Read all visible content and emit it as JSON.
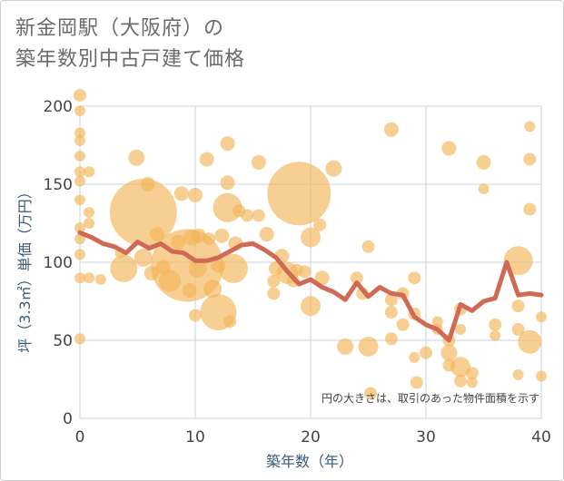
{
  "chart_data": {
    "type": "scatter",
    "title_line1": "新金岡駅（大阪府）の",
    "title_line2": "築年数別中古戸建て価格",
    "xlabel": "築年数（年）",
    "ylabel": "坪（3.3㎡）単価（万円）",
    "note": "円の大きさは、取引のあった物件面積を示す",
    "xlim": [
      0,
      40
    ],
    "ylim": [
      0,
      200
    ],
    "xticks": [
      "0",
      "10",
      "20",
      "30",
      "40"
    ],
    "yticks": [
      "0",
      "50",
      "100",
      "150",
      "200"
    ],
    "colors": {
      "bubble": "#f3b557",
      "line": "#d06a55",
      "grid": "#c8d3de"
    },
    "bubbles": [
      {
        "x": 0,
        "y": 207,
        "s": 7
      },
      {
        "x": 0,
        "y": 197,
        "s": 6
      },
      {
        "x": 0,
        "y": 183,
        "s": 6
      },
      {
        "x": 0,
        "y": 178,
        "s": 6
      },
      {
        "x": 0,
        "y": 168,
        "s": 6
      },
      {
        "x": 0,
        "y": 158,
        "s": 6
      },
      {
        "x": 0,
        "y": 152,
        "s": 6
      },
      {
        "x": 0,
        "y": 140,
        "s": 6
      },
      {
        "x": 0,
        "y": 122,
        "s": 6
      },
      {
        "x": 0,
        "y": 115,
        "s": 6
      },
      {
        "x": 0,
        "y": 105,
        "s": 6
      },
      {
        "x": 0,
        "y": 90,
        "s": 6
      },
      {
        "x": 0,
        "y": 51,
        "s": 6
      },
      {
        "x": 0.8,
        "y": 158,
        "s": 6
      },
      {
        "x": 0.8,
        "y": 132,
        "s": 6
      },
      {
        "x": 0.8,
        "y": 125,
        "s": 6
      },
      {
        "x": 0.8,
        "y": 90,
        "s": 6
      },
      {
        "x": 1.8,
        "y": 89,
        "s": 6
      },
      {
        "x": 3.5,
        "y": 106,
        "s": 6
      },
      {
        "x": 3.8,
        "y": 96,
        "s": 15
      },
      {
        "x": 4.9,
        "y": 167,
        "s": 9
      },
      {
        "x": 5.5,
        "y": 132,
        "s": 37
      },
      {
        "x": 5.5,
        "y": 103,
        "s": 10
      },
      {
        "x": 5.9,
        "y": 150,
        "s": 8
      },
      {
        "x": 6.2,
        "y": 93,
        "s": 8
      },
      {
        "x": 6.7,
        "y": 118,
        "s": 8
      },
      {
        "x": 7.2,
        "y": 97,
        "s": 8
      },
      {
        "x": 7.8,
        "y": 88,
        "s": 12
      },
      {
        "x": 8.5,
        "y": 113,
        "s": 8
      },
      {
        "x": 8.8,
        "y": 144,
        "s": 8
      },
      {
        "x": 9.3,
        "y": 98,
        "s": 40
      },
      {
        "x": 9.5,
        "y": 82,
        "s": 8
      },
      {
        "x": 9.7,
        "y": 116,
        "s": 9
      },
      {
        "x": 10,
        "y": 143,
        "s": 8
      },
      {
        "x": 10,
        "y": 66,
        "s": 7
      },
      {
        "x": 10.2,
        "y": 96,
        "s": 10
      },
      {
        "x": 10.3,
        "y": 117,
        "s": 8
      },
      {
        "x": 11,
        "y": 166,
        "s": 8
      },
      {
        "x": 11.2,
        "y": 115,
        "s": 7
      },
      {
        "x": 11.5,
        "y": 83,
        "s": 10
      },
      {
        "x": 12,
        "y": 68,
        "s": 20
      },
      {
        "x": 12,
        "y": 98,
        "s": 8
      },
      {
        "x": 12.3,
        "y": 117,
        "s": 8
      },
      {
        "x": 12.8,
        "y": 176,
        "s": 8
      },
      {
        "x": 12.8,
        "y": 151,
        "s": 8
      },
      {
        "x": 12.8,
        "y": 135,
        "s": 16
      },
      {
        "x": 13,
        "y": 62,
        "s": 7
      },
      {
        "x": 13.3,
        "y": 96,
        "s": 16
      },
      {
        "x": 13.5,
        "y": 112,
        "s": 8
      },
      {
        "x": 13.8,
        "y": 133,
        "s": 7
      },
      {
        "x": 14.5,
        "y": 130,
        "s": 7
      },
      {
        "x": 15.5,
        "y": 130,
        "s": 7
      },
      {
        "x": 15.5,
        "y": 164,
        "s": 8
      },
      {
        "x": 16.2,
        "y": 118,
        "s": 8
      },
      {
        "x": 16.8,
        "y": 88,
        "s": 7
      },
      {
        "x": 16.8,
        "y": 80,
        "s": 7
      },
      {
        "x": 17,
        "y": 96,
        "s": 8
      },
      {
        "x": 17.5,
        "y": 104,
        "s": 8
      },
      {
        "x": 18,
        "y": 93,
        "s": 12
      },
      {
        "x": 18.5,
        "y": 88,
        "s": 7
      },
      {
        "x": 18.8,
        "y": 95,
        "s": 7
      },
      {
        "x": 19,
        "y": 144,
        "s": 35
      },
      {
        "x": 19.5,
        "y": 94,
        "s": 7
      },
      {
        "x": 20,
        "y": 116,
        "s": 11
      },
      {
        "x": 20,
        "y": 72,
        "s": 11
      },
      {
        "x": 20.8,
        "y": 124,
        "s": 7
      },
      {
        "x": 21,
        "y": 90,
        "s": 8
      },
      {
        "x": 22,
        "y": 160,
        "s": 9
      },
      {
        "x": 23,
        "y": 46,
        "s": 9
      },
      {
        "x": 24,
        "y": 90,
        "s": 7
      },
      {
        "x": 24.5,
        "y": 80,
        "s": 7
      },
      {
        "x": 25,
        "y": 110,
        "s": 7
      },
      {
        "x": 25,
        "y": 46,
        "s": 11
      },
      {
        "x": 25.2,
        "y": 16,
        "s": 7
      },
      {
        "x": 27,
        "y": 185,
        "s": 8
      },
      {
        "x": 27,
        "y": 76,
        "s": 7
      },
      {
        "x": 27,
        "y": 68,
        "s": 7
      },
      {
        "x": 27,
        "y": 51,
        "s": 7
      },
      {
        "x": 28,
        "y": 80,
        "s": 7
      },
      {
        "x": 28,
        "y": 60,
        "s": 7
      },
      {
        "x": 29,
        "y": 90,
        "s": 7
      },
      {
        "x": 29,
        "y": 67,
        "s": 7
      },
      {
        "x": 29,
        "y": 39,
        "s": 6
      },
      {
        "x": 29.2,
        "y": 23,
        "s": 7
      },
      {
        "x": 30,
        "y": 42,
        "s": 7
      },
      {
        "x": 31,
        "y": 62,
        "s": 6
      },
      {
        "x": 31,
        "y": 57,
        "s": 6
      },
      {
        "x": 32,
        "y": 173,
        "s": 8
      },
      {
        "x": 32,
        "y": 50,
        "s": 7
      },
      {
        "x": 32,
        "y": 42,
        "s": 9
      },
      {
        "x": 32,
        "y": 34,
        "s": 7
      },
      {
        "x": 33,
        "y": 70,
        "s": 7
      },
      {
        "x": 33,
        "y": 57,
        "s": 6
      },
      {
        "x": 33,
        "y": 33,
        "s": 11
      },
      {
        "x": 33,
        "y": 24,
        "s": 7
      },
      {
        "x": 34,
        "y": 29,
        "s": 7
      },
      {
        "x": 34,
        "y": 23,
        "s": 6
      },
      {
        "x": 35,
        "y": 164,
        "s": 8
      },
      {
        "x": 35,
        "y": 147,
        "s": 6
      },
      {
        "x": 36,
        "y": 60,
        "s": 7
      },
      {
        "x": 36,
        "y": 53,
        "s": 6
      },
      {
        "x": 38,
        "y": 101,
        "s": 16
      },
      {
        "x": 38,
        "y": 72,
        "s": 7
      },
      {
        "x": 38,
        "y": 57,
        "s": 7
      },
      {
        "x": 38,
        "y": 28,
        "s": 6
      },
      {
        "x": 39,
        "y": 187,
        "s": 6
      },
      {
        "x": 39,
        "y": 166,
        "s": 7
      },
      {
        "x": 39,
        "y": 134,
        "s": 7
      },
      {
        "x": 39,
        "y": 49,
        "s": 13
      },
      {
        "x": 40,
        "y": 65,
        "s": 6
      },
      {
        "x": 40,
        "y": 27,
        "s": 6
      }
    ],
    "trend_line": [
      {
        "x": 0,
        "y": 119
      },
      {
        "x": 1,
        "y": 116
      },
      {
        "x": 2,
        "y": 112
      },
      {
        "x": 3,
        "y": 110
      },
      {
        "x": 4,
        "y": 106
      },
      {
        "x": 5,
        "y": 113
      },
      {
        "x": 6,
        "y": 109
      },
      {
        "x": 7,
        "y": 112
      },
      {
        "x": 8,
        "y": 107
      },
      {
        "x": 9,
        "y": 106
      },
      {
        "x": 10,
        "y": 101
      },
      {
        "x": 11,
        "y": 101
      },
      {
        "x": 12,
        "y": 103
      },
      {
        "x": 13,
        "y": 107
      },
      {
        "x": 14,
        "y": 111
      },
      {
        "x": 15,
        "y": 112
      },
      {
        "x": 16,
        "y": 108
      },
      {
        "x": 17,
        "y": 103
      },
      {
        "x": 18,
        "y": 94
      },
      {
        "x": 19,
        "y": 86
      },
      {
        "x": 20,
        "y": 89
      },
      {
        "x": 21,
        "y": 84
      },
      {
        "x": 22,
        "y": 81
      },
      {
        "x": 23,
        "y": 76
      },
      {
        "x": 24,
        "y": 87
      },
      {
        "x": 25,
        "y": 78
      },
      {
        "x": 26,
        "y": 84
      },
      {
        "x": 27,
        "y": 80
      },
      {
        "x": 28,
        "y": 79
      },
      {
        "x": 29,
        "y": 65
      },
      {
        "x": 30,
        "y": 60
      },
      {
        "x": 31,
        "y": 57
      },
      {
        "x": 32,
        "y": 50
      },
      {
        "x": 33,
        "y": 73
      },
      {
        "x": 34,
        "y": 69
      },
      {
        "x": 35,
        "y": 75
      },
      {
        "x": 36,
        "y": 77
      },
      {
        "x": 37,
        "y": 100
      },
      {
        "x": 38,
        "y": 79
      },
      {
        "x": 39,
        "y": 80
      },
      {
        "x": 40,
        "y": 79
      }
    ]
  }
}
